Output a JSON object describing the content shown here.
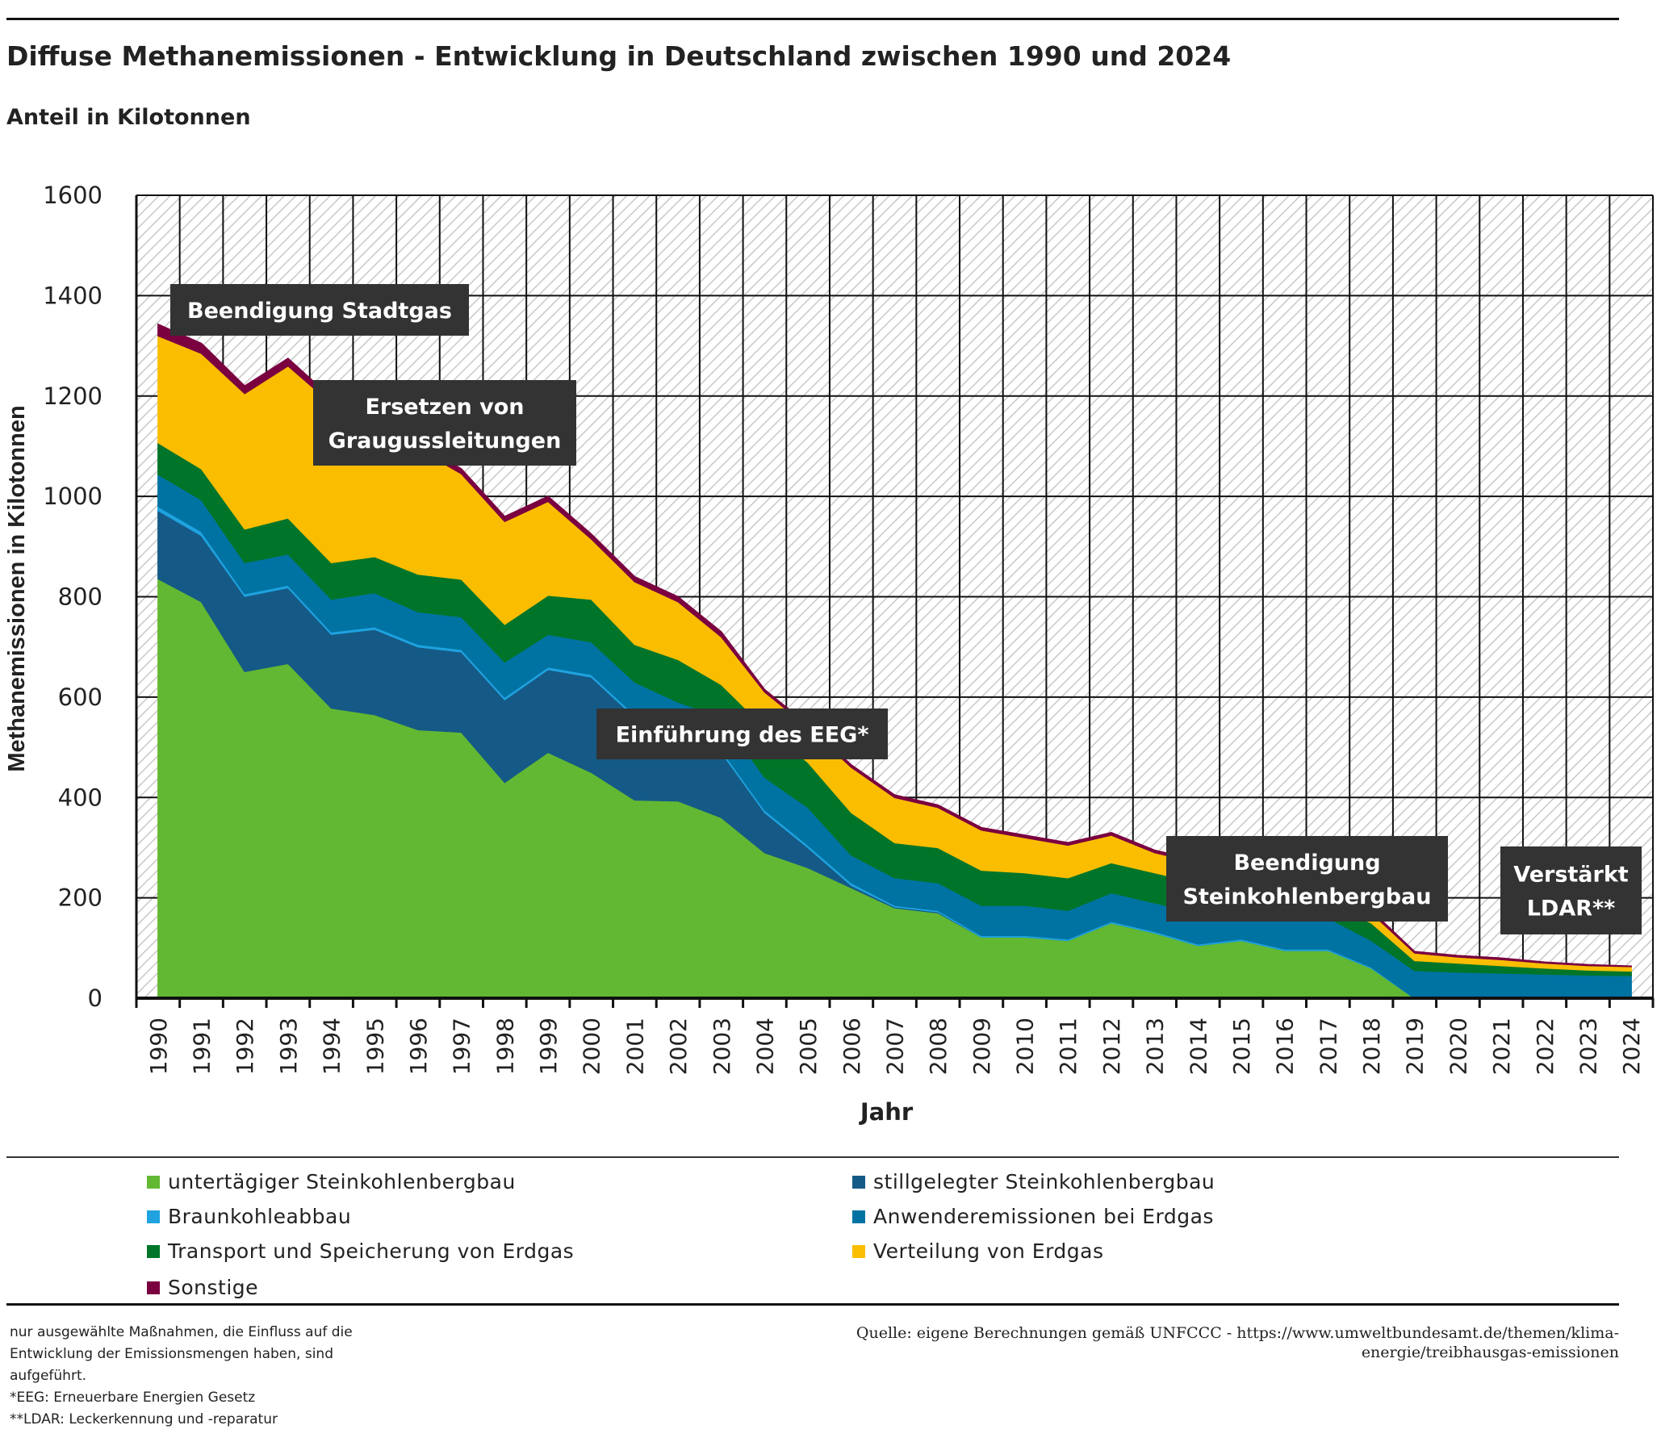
{
  "title": "Diffuse Methanemissionen - Entwicklung in Deutschland zwischen 1990 und 2024",
  "subtitle": "Anteil in Kilotonnen",
  "chart_data": {
    "type": "area",
    "stacked": true,
    "xlabel": "Jahr",
    "ylabel": "Methanemissionen in Kilotonnen",
    "ylim": [
      0,
      1600
    ],
    "yticks": [
      0,
      200,
      400,
      600,
      800,
      1000,
      1200,
      1400,
      1600
    ],
    "grid": true,
    "background": "diagonal-hatch",
    "categories": [
      "1990",
      "1991",
      "1992",
      "1993",
      "1994",
      "1995",
      "1996",
      "1997",
      "1998",
      "1999",
      "2000",
      "2001",
      "2002",
      "2003",
      "2004",
      "2005",
      "2006",
      "2007",
      "2008",
      "2009",
      "2010",
      "2011",
      "2012",
      "2013",
      "2014",
      "2015",
      "2016",
      "2017",
      "2018",
      "2019",
      "2020",
      "2021",
      "2022",
      "2023",
      "2024"
    ],
    "series": [
      {
        "name": "untertägiger Steinkohlenbergbau",
        "color": "#62b832",
        "values": [
          836,
          790,
          651,
          667,
          578,
          565,
          535,
          530,
          430,
          490,
          450,
          395,
          393,
          360,
          290,
          260,
          220,
          180,
          170,
          122,
          122,
          115,
          150,
          130,
          105,
          115,
          95,
          95,
          60,
          0,
          0,
          0,
          0,
          0,
          0
        ]
      },
      {
        "name": "stillgelegter Steinkohlenbergbau",
        "color": "#155a86",
        "values": [
          136,
          132,
          150,
          151,
          147,
          170,
          165,
          160,
          165,
          165,
          190,
          165,
          127,
          130,
          80,
          40,
          5,
          2,
          2,
          0,
          0,
          0,
          0,
          0,
          0,
          0,
          0,
          0,
          0,
          0,
          0,
          0,
          0,
          0,
          0
        ]
      },
      {
        "name": "Braunkohleabbau",
        "color": "#1fa3e0",
        "values": [
          8,
          8,
          5,
          5,
          5,
          5,
          5,
          5,
          5,
          5,
          5,
          5,
          5,
          5,
          5,
          5,
          5,
          3,
          3,
          3,
          3,
          3,
          3,
          3,
          3,
          3,
          3,
          3,
          2,
          0,
          0,
          0,
          0,
          0,
          0
        ]
      },
      {
        "name": "Anwenderemissionen bei Erdgas",
        "color": "#0073a3",
        "values": [
          64,
          63,
          62,
          62,
          65,
          68,
          65,
          65,
          70,
          65,
          65,
          65,
          65,
          65,
          65,
          75,
          55,
          55,
          55,
          60,
          60,
          57,
          57,
          57,
          62,
          47,
          62,
          62,
          53,
          55,
          52,
          50,
          48,
          46,
          45
        ]
      },
      {
        "name": "Transport und Speicherung von Erdgas",
        "color": "#00752a",
        "values": [
          63,
          62,
          67,
          72,
          73,
          72,
          75,
          75,
          75,
          78,
          85,
          75,
          85,
          65,
          100,
          90,
          85,
          70,
          70,
          70,
          65,
          65,
          60,
          60,
          60,
          55,
          40,
          30,
          35,
          20,
          18,
          15,
          12,
          10,
          9
        ]
      },
      {
        "name": "Verteilung von Erdgas",
        "color": "#fbbd00",
        "values": [
          213,
          230,
          270,
          303,
          317,
          265,
          250,
          210,
          205,
          187,
          120,
          125,
          115,
          95,
          70,
          70,
          90,
          90,
          80,
          80,
          70,
          65,
          55,
          40,
          40,
          30,
          30,
          25,
          20,
          15,
          12,
          12,
          10,
          9,
          9
        ]
      },
      {
        "name": "Sonstige",
        "color": "#7a0040",
        "values": [
          23,
          20,
          15,
          15,
          12,
          10,
          10,
          10,
          10,
          10,
          10,
          10,
          10,
          10,
          5,
          5,
          5,
          5,
          5,
          5,
          5,
          5,
          5,
          5,
          5,
          5,
          5,
          5,
          5,
          3,
          3,
          3,
          2,
          2,
          1
        ]
      }
    ],
    "annotations": [
      {
        "lines": [
          "Beendigung Stadtgas"
        ],
        "year": "1990"
      },
      {
        "lines": [
          "Ersetzen von",
          "Graugussleitungen"
        ],
        "year": "1994"
      },
      {
        "lines": [
          "Einführung des EEG*"
        ],
        "year": "2000"
      },
      {
        "lines": [
          "Beendigung",
          "Steinkohlenbergbau"
        ],
        "year": "2018"
      },
      {
        "lines": [
          "Verstärkt",
          "LDAR**"
        ],
        "year": "2024"
      }
    ],
    "legend_position": "bottom"
  },
  "footnotes": [
    "nur ausgewählte Maßnahmen, die Einfluss auf die",
    "Entwicklung der Emissionsmengen haben, sind",
    "aufgeführt.",
    "*EEG: Erneuerbare Energien Gesetz",
    "**LDAR: Leckerkennung und -reparatur"
  ],
  "source": [
    "Quelle: eigene Berechnungen gemäß UNFCCC - https://www.umweltbundesamt.de/themen/klima-",
    "energie/treibhausgas-emissionen"
  ]
}
